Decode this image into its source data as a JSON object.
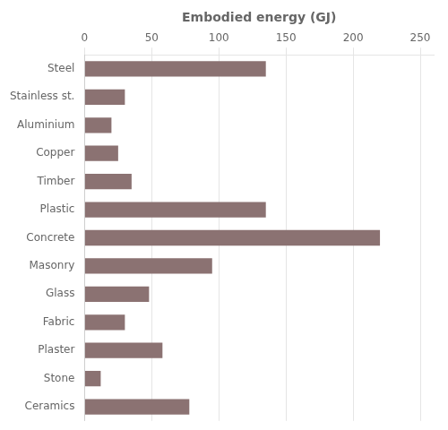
{
  "chart_data": {
    "type": "bar",
    "orientation": "horizontal",
    "xlabel": "Embodied energy (GJ)",
    "categories": [
      "Steel",
      "Stainless st.",
      "Aluminium",
      "Copper",
      "Timber",
      "Plastic",
      "Concrete",
      "Masonry",
      "Glass",
      "Fabric",
      "Plaster",
      "Stone",
      "Ceramics"
    ],
    "values": [
      135,
      30,
      20,
      25,
      35,
      135,
      220,
      95,
      48,
      30,
      58,
      12,
      78
    ],
    "color": "#8b7272",
    "xlim": [
      0,
      260
    ],
    "xticks": [
      0,
      50,
      100,
      150,
      200,
      250
    ],
    "grid": true
  }
}
